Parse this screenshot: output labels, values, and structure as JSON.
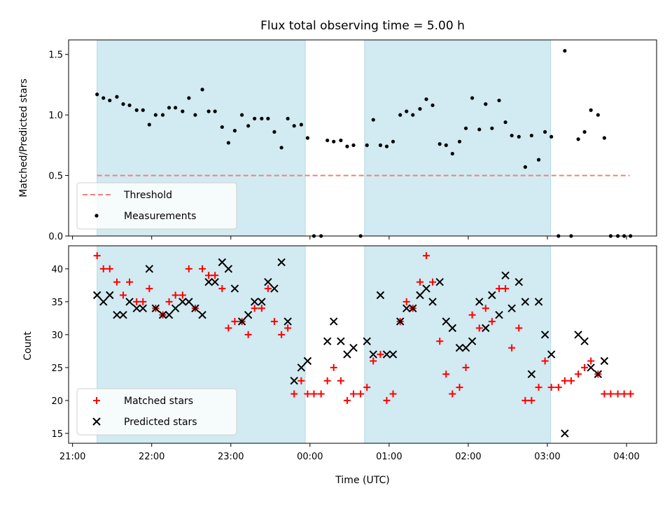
{
  "chart_data": {
    "title": "Flux total observing time = 5.00 h",
    "xlabel": "Time (UTC)",
    "x_ticks": [
      "21:00",
      "22:00",
      "23:00",
      "00:00",
      "01:00",
      "02:00",
      "03:00",
      "04:00"
    ],
    "x_range_hours": [
      20.95,
      28.38
    ],
    "shaded_time_ranges": [
      [
        21.31,
        23.94
      ],
      [
        24.69,
        27.04
      ]
    ],
    "shade_color": "#add8e6",
    "panels": [
      {
        "type": "scatter",
        "ylabel": "Matched/Predicted stars",
        "ylim": [
          0,
          1.62
        ],
        "yticks": [
          "0.0",
          "0.5",
          "1.0",
          "1.5"
        ],
        "threshold": {
          "name": "Threshold",
          "value": 0.5,
          "x_range": [
            21.31,
            28.04
          ],
          "color": "#f08080"
        },
        "series": [
          {
            "name": "Measurements",
            "color": "#000000",
            "points": [
              [
                21.31,
                1.17
              ],
              [
                21.39,
                1.14
              ],
              [
                21.47,
                1.12
              ],
              [
                21.56,
                1.15
              ],
              [
                21.64,
                1.09
              ],
              [
                21.72,
                1.08
              ],
              [
                21.81,
                1.04
              ],
              [
                21.89,
                1.04
              ],
              [
                21.97,
                0.92
              ],
              [
                22.05,
                1.0
              ],
              [
                22.14,
                1.0
              ],
              [
                22.22,
                1.06
              ],
              [
                22.3,
                1.06
              ],
              [
                22.39,
                1.03
              ],
              [
                22.47,
                1.14
              ],
              [
                22.55,
                1.0
              ],
              [
                22.64,
                1.21
              ],
              [
                22.72,
                1.03
              ],
              [
                22.8,
                1.03
              ],
              [
                22.89,
                0.9
              ],
              [
                22.97,
                0.77
              ],
              [
                23.05,
                0.87
              ],
              [
                23.14,
                1.0
              ],
              [
                23.22,
                0.91
              ],
              [
                23.3,
                0.97
              ],
              [
                23.39,
                0.97
              ],
              [
                23.47,
                0.97
              ],
              [
                23.55,
                0.86
              ],
              [
                23.64,
                0.73
              ],
              [
                23.72,
                0.97
              ],
              [
                23.8,
                0.91
              ],
              [
                23.89,
                0.92
              ],
              [
                23.97,
                0.81
              ],
              [
                24.05,
                0.0
              ],
              [
                24.14,
                0.0
              ],
              [
                24.22,
                0.79
              ],
              [
                24.3,
                0.78
              ],
              [
                24.39,
                0.79
              ],
              [
                24.47,
                0.74
              ],
              [
                24.55,
                0.75
              ],
              [
                24.64,
                0.0
              ],
              [
                24.72,
                0.75
              ],
              [
                24.8,
                0.96
              ],
              [
                24.89,
                0.75
              ],
              [
                24.97,
                0.74
              ],
              [
                25.05,
                0.78
              ],
              [
                25.14,
                1.0
              ],
              [
                25.22,
                1.03
              ],
              [
                25.3,
                1.0
              ],
              [
                25.39,
                1.05
              ],
              [
                25.47,
                1.13
              ],
              [
                25.55,
                1.08
              ],
              [
                25.64,
                0.76
              ],
              [
                25.72,
                0.75
              ],
              [
                25.8,
                0.68
              ],
              [
                25.89,
                0.78
              ],
              [
                25.97,
                0.89
              ],
              [
                26.05,
                1.14
              ],
              [
                26.14,
                0.88
              ],
              [
                26.22,
                1.09
              ],
              [
                26.3,
                0.89
              ],
              [
                26.39,
                1.12
              ],
              [
                26.47,
                0.94
              ],
              [
                26.55,
                0.83
              ],
              [
                26.64,
                0.82
              ],
              [
                26.72,
                0.57
              ],
              [
                26.8,
                0.83
              ],
              [
                26.89,
                0.63
              ],
              [
                26.97,
                0.86
              ],
              [
                27.05,
                0.82
              ],
              [
                27.14,
                0.0
              ],
              [
                27.22,
                1.53
              ],
              [
                27.3,
                0.0
              ],
              [
                27.39,
                0.8
              ],
              [
                27.47,
                0.86
              ],
              [
                27.55,
                1.04
              ],
              [
                27.64,
                1.0
              ],
              [
                27.72,
                0.81
              ],
              [
                27.8,
                0.0
              ],
              [
                27.89,
                0.0
              ],
              [
                27.97,
                0.0
              ],
              [
                28.05,
                0.0
              ]
            ]
          }
        ],
        "legend": {
          "placement": "lower-left",
          "entries": [
            "Threshold",
            "Measurements"
          ]
        }
      },
      {
        "type": "scatter",
        "ylabel": "Count",
        "ylim": [
          13.5,
          43.5
        ],
        "yticks": [
          "15",
          "20",
          "25",
          "30",
          "35",
          "40"
        ],
        "series": [
          {
            "name": "Matched stars",
            "color": "#ff0000",
            "marker": "plus",
            "points": [
              [
                21.31,
                42
              ],
              [
                21.39,
                40
              ],
              [
                21.47,
                40
              ],
              [
                21.56,
                38
              ],
              [
                21.64,
                36
              ],
              [
                21.72,
                38
              ],
              [
                21.81,
                35
              ],
              [
                21.89,
                35
              ],
              [
                21.97,
                37
              ],
              [
                22.05,
                34
              ],
              [
                22.14,
                33
              ],
              [
                22.22,
                35
              ],
              [
                22.3,
                36
              ],
              [
                22.39,
                36
              ],
              [
                22.47,
                40
              ],
              [
                22.55,
                34
              ],
              [
                22.64,
                40
              ],
              [
                22.72,
                39
              ],
              [
                22.8,
                39
              ],
              [
                22.89,
                37
              ],
              [
                22.97,
                31
              ],
              [
                23.05,
                32
              ],
              [
                23.14,
                32
              ],
              [
                23.22,
                30
              ],
              [
                23.3,
                34
              ],
              [
                23.39,
                34
              ],
              [
                23.47,
                37
              ],
              [
                23.55,
                32
              ],
              [
                23.64,
                30
              ],
              [
                23.72,
                31
              ],
              [
                23.8,
                21
              ],
              [
                23.89,
                23
              ],
              [
                23.97,
                21
              ],
              [
                24.05,
                21
              ],
              [
                24.14,
                21
              ],
              [
                24.22,
                23
              ],
              [
                24.3,
                25
              ],
              [
                24.39,
                23
              ],
              [
                24.47,
                20
              ],
              [
                24.55,
                21
              ],
              [
                24.64,
                21
              ],
              [
                24.72,
                22
              ],
              [
                24.8,
                26
              ],
              [
                24.89,
                27
              ],
              [
                24.97,
                20
              ],
              [
                25.05,
                21
              ],
              [
                25.14,
                32
              ],
              [
                25.22,
                35
              ],
              [
                25.3,
                34
              ],
              [
                25.39,
                38
              ],
              [
                25.47,
                42
              ],
              [
                25.55,
                38
              ],
              [
                25.64,
                29
              ],
              [
                25.72,
                24
              ],
              [
                25.8,
                21
              ],
              [
                25.89,
                22
              ],
              [
                25.97,
                25
              ],
              [
                26.05,
                33
              ],
              [
                26.14,
                31
              ],
              [
                26.22,
                34
              ],
              [
                26.3,
                32
              ],
              [
                26.39,
                37
              ],
              [
                26.47,
                37
              ],
              [
                26.55,
                28
              ],
              [
                26.64,
                31
              ],
              [
                26.72,
                20
              ],
              [
                26.8,
                20
              ],
              [
                26.89,
                22
              ],
              [
                26.97,
                26
              ],
              [
                27.05,
                22
              ],
              [
                27.14,
                22
              ],
              [
                27.22,
                23
              ],
              [
                27.3,
                23
              ],
              [
                27.39,
                24
              ],
              [
                27.47,
                25
              ],
              [
                27.55,
                26
              ],
              [
                27.64,
                24
              ],
              [
                27.72,
                21
              ],
              [
                27.8,
                21
              ],
              [
                27.89,
                21
              ],
              [
                27.97,
                21
              ],
              [
                28.05,
                21
              ]
            ]
          },
          {
            "name": "Predicted stars",
            "color": "#000000",
            "marker": "x",
            "points": [
              [
                21.31,
                36
              ],
              [
                21.39,
                35
              ],
              [
                21.47,
                36
              ],
              [
                21.56,
                33
              ],
              [
                21.64,
                33
              ],
              [
                21.72,
                35
              ],
              [
                21.81,
                34
              ],
              [
                21.89,
                34
              ],
              [
                21.97,
                40
              ],
              [
                22.05,
                34
              ],
              [
                22.14,
                33
              ],
              [
                22.22,
                33
              ],
              [
                22.3,
                34
              ],
              [
                22.39,
                35
              ],
              [
                22.47,
                35
              ],
              [
                22.55,
                34
              ],
              [
                22.64,
                33
              ],
              [
                22.72,
                38
              ],
              [
                22.8,
                38
              ],
              [
                22.89,
                41
              ],
              [
                22.97,
                40
              ],
              [
                23.05,
                37
              ],
              [
                23.14,
                32
              ],
              [
                23.22,
                33
              ],
              [
                23.3,
                35
              ],
              [
                23.39,
                35
              ],
              [
                23.47,
                38
              ],
              [
                23.55,
                37
              ],
              [
                23.64,
                41
              ],
              [
                23.72,
                32
              ],
              [
                23.8,
                23
              ],
              [
                23.89,
                25
              ],
              [
                23.97,
                26
              ],
              [
                24.22,
                29
              ],
              [
                24.3,
                32
              ],
              [
                24.39,
                29
              ],
              [
                24.47,
                27
              ],
              [
                24.55,
                28
              ],
              [
                24.72,
                29
              ],
              [
                24.8,
                27
              ],
              [
                24.89,
                36
              ],
              [
                24.97,
                27
              ],
              [
                25.05,
                27
              ],
              [
                25.14,
                32
              ],
              [
                25.22,
                34
              ],
              [
                25.3,
                34
              ],
              [
                25.39,
                36
              ],
              [
                25.47,
                37
              ],
              [
                25.55,
                35
              ],
              [
                25.64,
                38
              ],
              [
                25.72,
                32
              ],
              [
                25.8,
                31
              ],
              [
                25.89,
                28
              ],
              [
                25.97,
                28
              ],
              [
                26.05,
                29
              ],
              [
                26.14,
                35
              ],
              [
                26.22,
                31
              ],
              [
                26.3,
                36
              ],
              [
                26.39,
                33
              ],
              [
                26.47,
                39
              ],
              [
                26.55,
                34
              ],
              [
                26.64,
                38
              ],
              [
                26.72,
                35
              ],
              [
                26.8,
                24
              ],
              [
                26.89,
                35
              ],
              [
                26.97,
                30
              ],
              [
                27.05,
                27
              ],
              [
                27.22,
                15
              ],
              [
                27.39,
                30
              ],
              [
                27.47,
                29
              ],
              [
                27.55,
                25
              ],
              [
                27.64,
                24
              ],
              [
                27.72,
                26
              ]
            ]
          }
        ],
        "legend": {
          "placement": "lower-left",
          "entries": [
            "Matched stars",
            "Predicted stars"
          ]
        }
      }
    ]
  }
}
